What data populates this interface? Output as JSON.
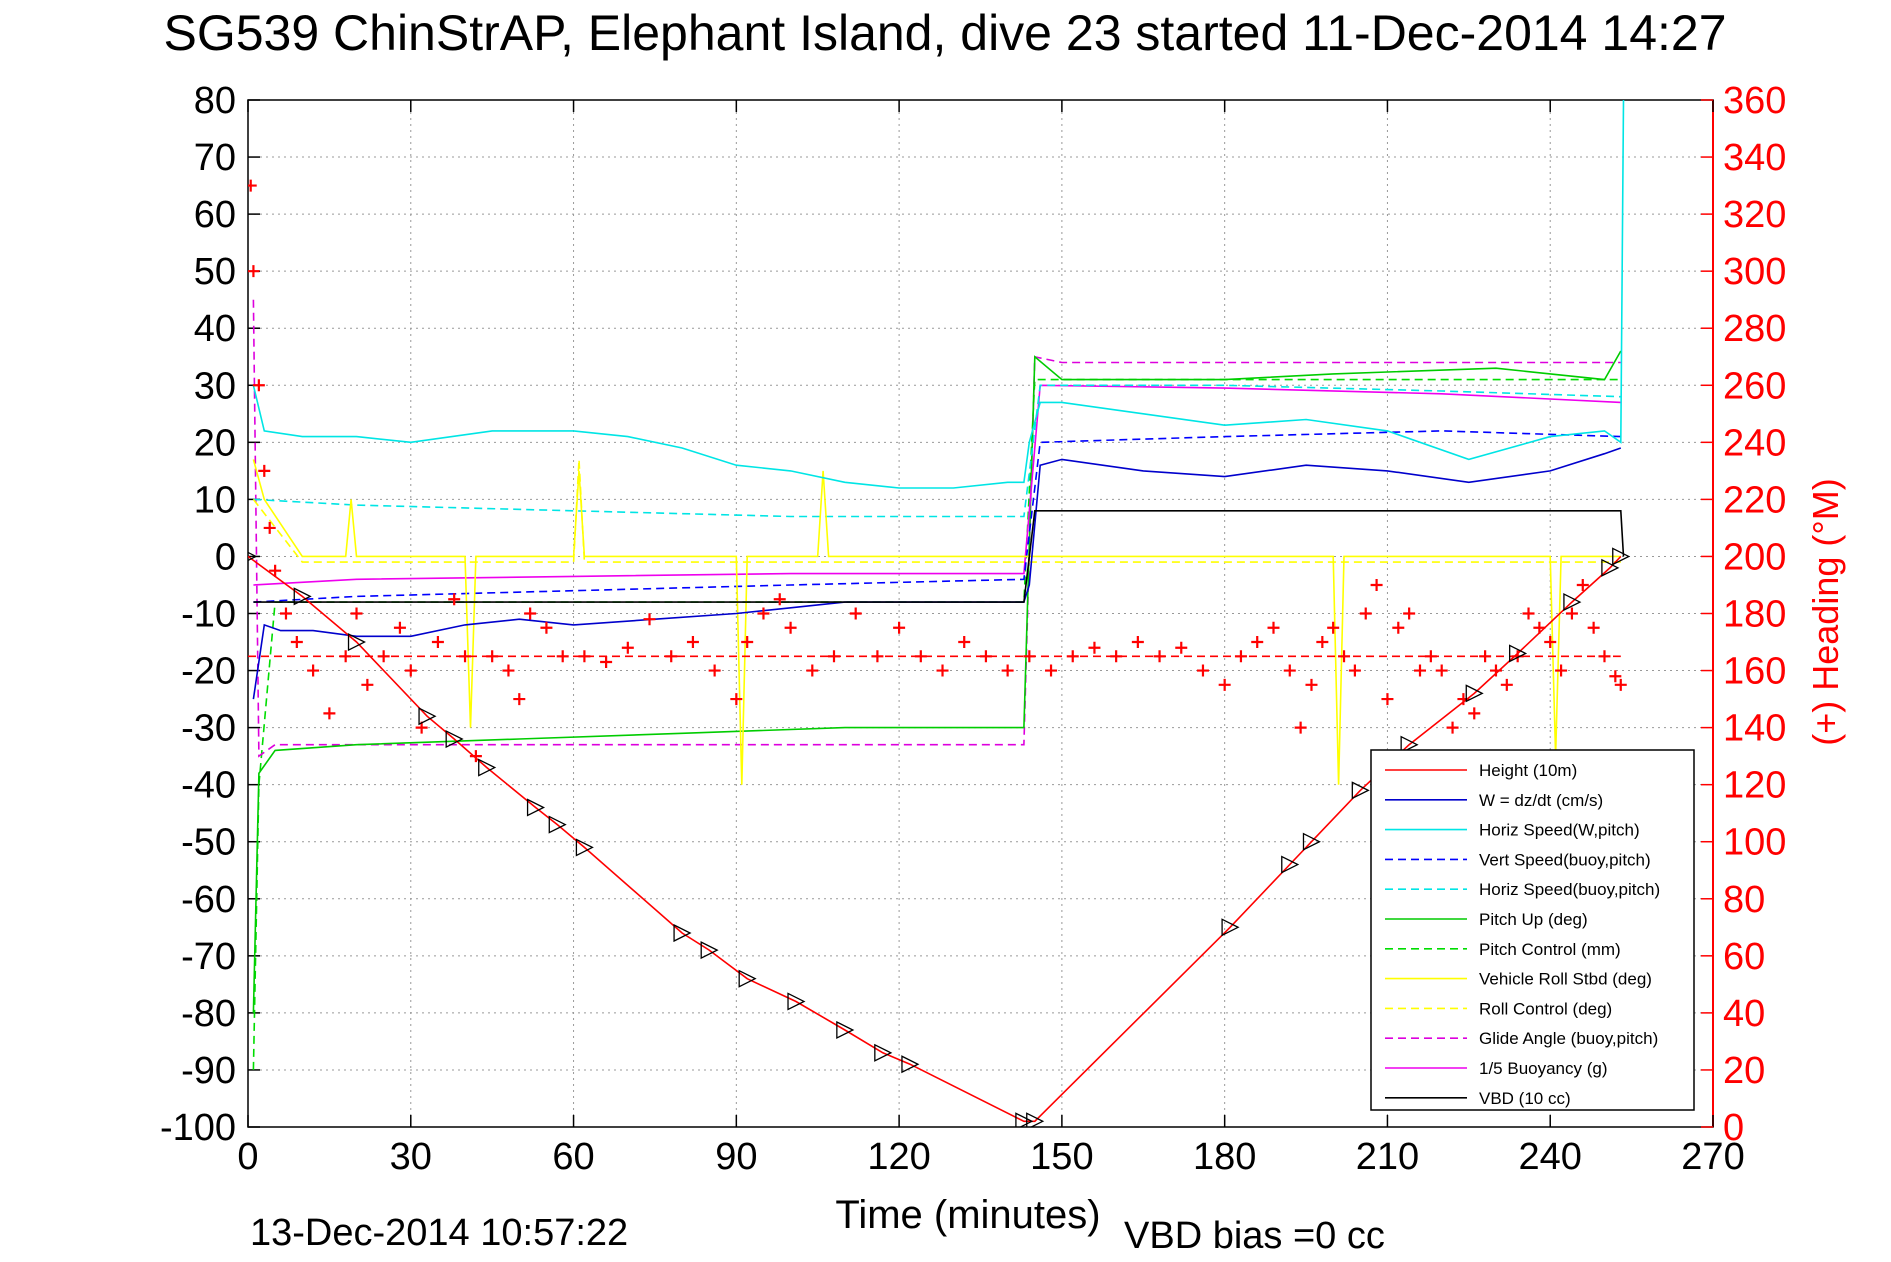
{
  "chart_data": {
    "type": "line",
    "title": "SG539 ChinStrAP, Elephant Island, dive 23 started 11-Dec-2014 14:27",
    "xlabel": "Time (minutes)",
    "ylabel_right": "(+) Heading (°M)",
    "footer_left": "13-Dec-2014 10:57:22",
    "footer_right": "VBD bias =0 cc",
    "xlim": [
      0,
      270
    ],
    "ylim": [
      -100,
      80
    ],
    "ylim_right": [
      0,
      360
    ],
    "xticks": [
      "0",
      "30",
      "60",
      "90",
      "120",
      "150",
      "180",
      "210",
      "240",
      "270"
    ],
    "yticks": [
      "80",
      "70",
      "60",
      "50",
      "40",
      "30",
      "20",
      "10",
      "0",
      "-10",
      "-20",
      "-30",
      "-40",
      "-50",
      "-60",
      "-70",
      "-80",
      "-90",
      "-100"
    ],
    "yticks_right": [
      "360",
      "340",
      "320",
      "300",
      "280",
      "260",
      "240",
      "220",
      "200",
      "180",
      "160",
      "140",
      "120",
      "100",
      "80",
      "60",
      "40",
      "20",
      "0"
    ],
    "grid": true,
    "legend_position": "lower-right",
    "colors": {
      "height": "#ff0000",
      "w": "#0000cc",
      "horiz_speed": "#00e5e5",
      "vert_speed_model": "#0000ff",
      "horiz_speed_model": "#00e5e5",
      "pitch_up": "#00cc00",
      "pitch_control": "#00dd00",
      "vehicle_roll": "#ffff00",
      "roll_control": "#ffff00",
      "glide_angle": "#dd00dd",
      "buoyancy": "#ee00ee",
      "vbd": "#000000",
      "heading": "#ff0000",
      "heading_ref": "#ff0000"
    },
    "series": [
      {
        "key": "height",
        "name": "Height (10m)",
        "style": "solid",
        "marker": "triangle",
        "x": [
          0,
          10,
          20,
          33,
          38,
          44,
          53,
          57,
          62,
          80,
          85,
          92,
          101,
          110,
          117,
          122,
          143,
          145,
          181,
          192,
          196,
          205,
          214,
          226,
          234,
          244,
          251,
          253
        ],
        "y": [
          0,
          -7,
          -15,
          -28,
          -32,
          -37,
          -44,
          -47,
          -51,
          -66,
          -69,
          -74,
          -78,
          -83,
          -87,
          -89,
          -99,
          -99,
          -65,
          -54,
          -50,
          -41,
          -33,
          -24,
          -17,
          -8,
          -2,
          0
        ]
      },
      {
        "key": "w",
        "name": "W = dz/dt (cm/s)",
        "style": "solid",
        "x": [
          1,
          3,
          6,
          12,
          20,
          30,
          40,
          50,
          60,
          75,
          90,
          100,
          110,
          125,
          140,
          143,
          144,
          146,
          150,
          165,
          180,
          195,
          210,
          225,
          240,
          250,
          253
        ],
        "y": [
          -25,
          -12,
          -13,
          -13,
          -14,
          -14,
          -12,
          -11,
          -12,
          -11,
          -10,
          -9,
          -8,
          -8,
          -8,
          -8,
          -5,
          16,
          17,
          15,
          14,
          16,
          15,
          13,
          15,
          18,
          19
        ]
      },
      {
        "key": "horiz_speed",
        "name": "Horiz Speed(W,pitch)",
        "style": "solid",
        "x": [
          1,
          3,
          10,
          20,
          30,
          45,
          60,
          70,
          80,
          90,
          100,
          110,
          120,
          130,
          140,
          143,
          144,
          146,
          150,
          165,
          180,
          195,
          210,
          225,
          240,
          250,
          253,
          253.5
        ],
        "y": [
          30,
          22,
          21,
          21,
          20,
          22,
          22,
          21,
          19,
          16,
          15,
          13,
          12,
          12,
          13,
          13,
          20,
          27,
          27,
          25,
          23,
          24,
          22,
          17,
          21,
          22,
          20,
          80
        ]
      },
      {
        "key": "vert_speed_model",
        "name": "Vert Speed(buoy,pitch)",
        "style": "dashed",
        "x": [
          1,
          20,
          60,
          100,
          143,
          146,
          180,
          220,
          253
        ],
        "y": [
          -8,
          -7,
          -6,
          -5,
          -4,
          20,
          21,
          22,
          21
        ]
      },
      {
        "key": "horiz_speed_model",
        "name": "Horiz Speed(buoy,pitch)",
        "style": "dashed",
        "x": [
          1,
          20,
          60,
          100,
          143,
          146,
          180,
          220,
          253
        ],
        "y": [
          10,
          9,
          8,
          7,
          7,
          30,
          30,
          29,
          28
        ]
      },
      {
        "key": "pitch_up",
        "name": "Pitch Up (deg)",
        "style": "solid",
        "x": [
          1,
          2,
          5,
          20,
          50,
          80,
          110,
          143,
          145,
          150,
          180,
          200,
          230,
          250,
          253
        ],
        "y": [
          -80,
          -38,
          -34,
          -33,
          -32,
          -31,
          -30,
          -30,
          35,
          31,
          31,
          32,
          33,
          31,
          36
        ]
      },
      {
        "key": "pitch_control",
        "name": "Pitch Control (mm)",
        "style": "dashed",
        "x": [
          1,
          2,
          5,
          20,
          143,
          145,
          150,
          253
        ],
        "y": [
          -90,
          -40,
          -8,
          -8,
          -8,
          31,
          31,
          31
        ]
      },
      {
        "key": "vehicle_roll",
        "name": "Vehicle Roll Stbd (deg)",
        "style": "solid",
        "x": [
          1,
          3,
          10,
          18,
          19,
          20,
          40,
          41,
          42,
          60,
          61,
          62,
          90,
          91,
          92,
          105,
          106,
          107,
          143,
          145,
          160,
          200,
          201,
          202,
          240,
          241,
          242,
          253
        ],
        "y": [
          17,
          10,
          0,
          0,
          10,
          0,
          0,
          -30,
          0,
          0,
          15,
          0,
          0,
          -40,
          0,
          0,
          15,
          0,
          0,
          0,
          0,
          0,
          -40,
          0,
          0,
          -35,
          0,
          0
        ]
      },
      {
        "key": "roll_control",
        "name": "Roll Control (deg)",
        "style": "dashed",
        "x": [
          1,
          10,
          60,
          61,
          62,
          100,
          143,
          145,
          253
        ],
        "y": [
          10,
          -1,
          -1,
          17,
          -1,
          -1,
          -1,
          -1,
          -1
        ]
      },
      {
        "key": "glide_angle",
        "name": "Glide Angle (buoy,pitch)",
        "style": "dashed",
        "x": [
          1,
          2,
          5,
          20,
          143,
          145,
          150,
          253
        ],
        "y": [
          45,
          -35,
          -33,
          -33,
          -33,
          35,
          34,
          34
        ]
      },
      {
        "key": "buoyancy",
        "name": "1/5 Buoyancy (g)",
        "style": "solid",
        "x": [
          1,
          20,
          60,
          100,
          143,
          146,
          180,
          220,
          253
        ],
        "y": [
          -5,
          -4,
          -3.5,
          -3,
          -3,
          30,
          29.5,
          28.5,
          27
        ]
      },
      {
        "key": "vbd",
        "name": "VBD (10 cc)",
        "style": "solid",
        "x": [
          1,
          2,
          20,
          143,
          145,
          146,
          253,
          253.5
        ],
        "y": [
          -8,
          -8,
          -8,
          -8,
          8,
          8,
          8,
          0
        ]
      },
      {
        "key": "heading",
        "style": "markers",
        "marker": "plus",
        "axis": "right",
        "x": [
          0.5,
          1,
          2,
          3,
          4,
          5,
          7,
          9,
          12,
          15,
          18,
          20,
          22,
          25,
          28,
          30,
          32,
          35,
          38,
          40,
          42,
          45,
          48,
          50,
          52,
          55,
          58,
          62,
          66,
          70,
          74,
          78,
          82,
          86,
          90,
          92,
          95,
          98,
          100,
          104,
          108,
          112,
          116,
          120,
          124,
          128,
          132,
          136,
          140,
          144,
          148,
          152,
          156,
          160,
          164,
          168,
          172,
          176,
          180,
          183,
          186,
          189,
          192,
          194,
          196,
          198,
          200,
          202,
          204,
          206,
          208,
          210,
          212,
          214,
          216,
          218,
          220,
          222,
          224,
          226,
          228,
          230,
          232,
          234,
          236,
          238,
          240,
          242,
          244,
          246,
          248,
          250,
          252,
          253
        ],
        "y": [
          330,
          300,
          260,
          230,
          210,
          195,
          180,
          170,
          160,
          145,
          165,
          180,
          155,
          165,
          175,
          160,
          140,
          170,
          185,
          165,
          130,
          165,
          160,
          150,
          180,
          175,
          165,
          165,
          163,
          168,
          178,
          165,
          170,
          160,
          150,
          170,
          180,
          185,
          175,
          160,
          165,
          180,
          165,
          175,
          165,
          160,
          170,
          165,
          160,
          165,
          160,
          165,
          168,
          165,
          170,
          165,
          168,
          160,
          155,
          165,
          170,
          175,
          160,
          140,
          155,
          170,
          175,
          165,
          160,
          180,
          190,
          150,
          175,
          180,
          160,
          165,
          160,
          140,
          150,
          145,
          165,
          160,
          155,
          165,
          180,
          175,
          170,
          160,
          180,
          190,
          175,
          165,
          158,
          155
        ]
      },
      {
        "key": "heading_ref",
        "style": "dashed",
        "axis": "right",
        "x": [
          0,
          253
        ],
        "y": [
          165,
          165
        ]
      }
    ]
  }
}
